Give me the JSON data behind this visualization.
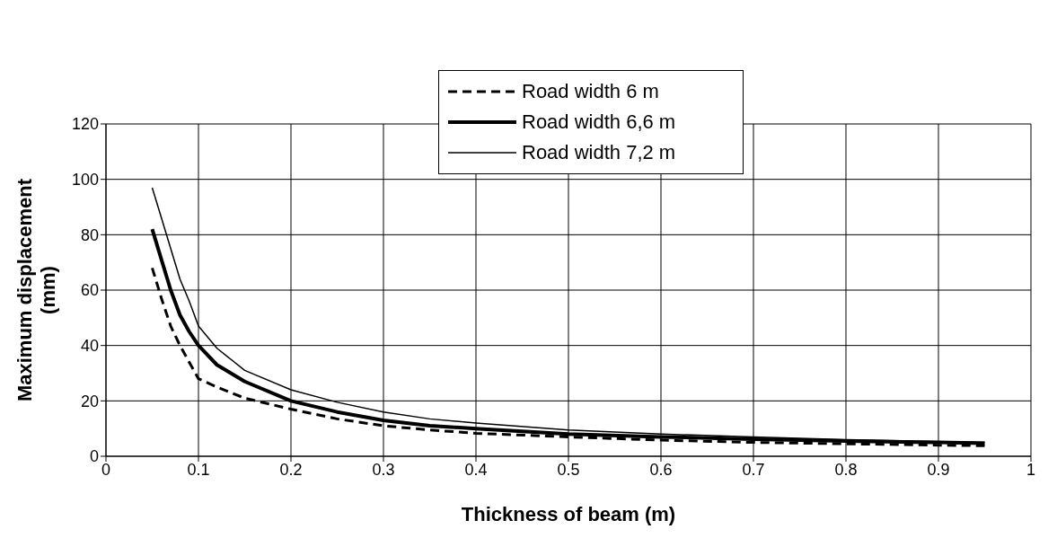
{
  "chart_data": {
    "type": "line",
    "xlabel": "Thickness of beam (m)",
    "ylabel": "Maximum displacement\n(mm)",
    "x": [
      0.05,
      0.06,
      0.07,
      0.08,
      0.09,
      0.1,
      0.12,
      0.15,
      0.2,
      0.25,
      0.3,
      0.35,
      0.4,
      0.5,
      0.6,
      0.7,
      0.8,
      0.9,
      0.95
    ],
    "series": [
      {
        "name": "Road width 6 m",
        "color": "#000000",
        "line_style": "dashed",
        "values": [
          68,
          57,
          47,
          40,
          34,
          28,
          25,
          21,
          17,
          13.5,
          11,
          9.5,
          8.3,
          7,
          5.8,
          5,
          4.5,
          4,
          3.8
        ]
      },
      {
        "name": "Road width 6,6 m",
        "color": "#000000",
        "line_style": "solid",
        "values": [
          82,
          71,
          60,
          51,
          45,
          40,
          33,
          27,
          20,
          16,
          13,
          11,
          10,
          8,
          7,
          6.2,
          5.5,
          5,
          4.7
        ]
      },
      {
        "name": "Road width 7,2 m",
        "color": "#000000",
        "line_style": "solid",
        "values": [
          97,
          86,
          75,
          64,
          56,
          47,
          39,
          31,
          24,
          19.5,
          16,
          13.5,
          12,
          9.5,
          8,
          7,
          6,
          5.3,
          5
        ]
      }
    ],
    "xlim": [
      0,
      1
    ],
    "xticks": [
      0,
      0.1,
      0.2,
      0.3,
      0.4,
      0.5,
      0.6,
      0.7,
      0.8,
      0.9,
      1
    ],
    "ylim": [
      0,
      120
    ],
    "yticks": [
      0,
      20,
      40,
      60,
      80,
      100,
      120
    ],
    "grid": true,
    "legend": "top",
    "marker": "none"
  }
}
